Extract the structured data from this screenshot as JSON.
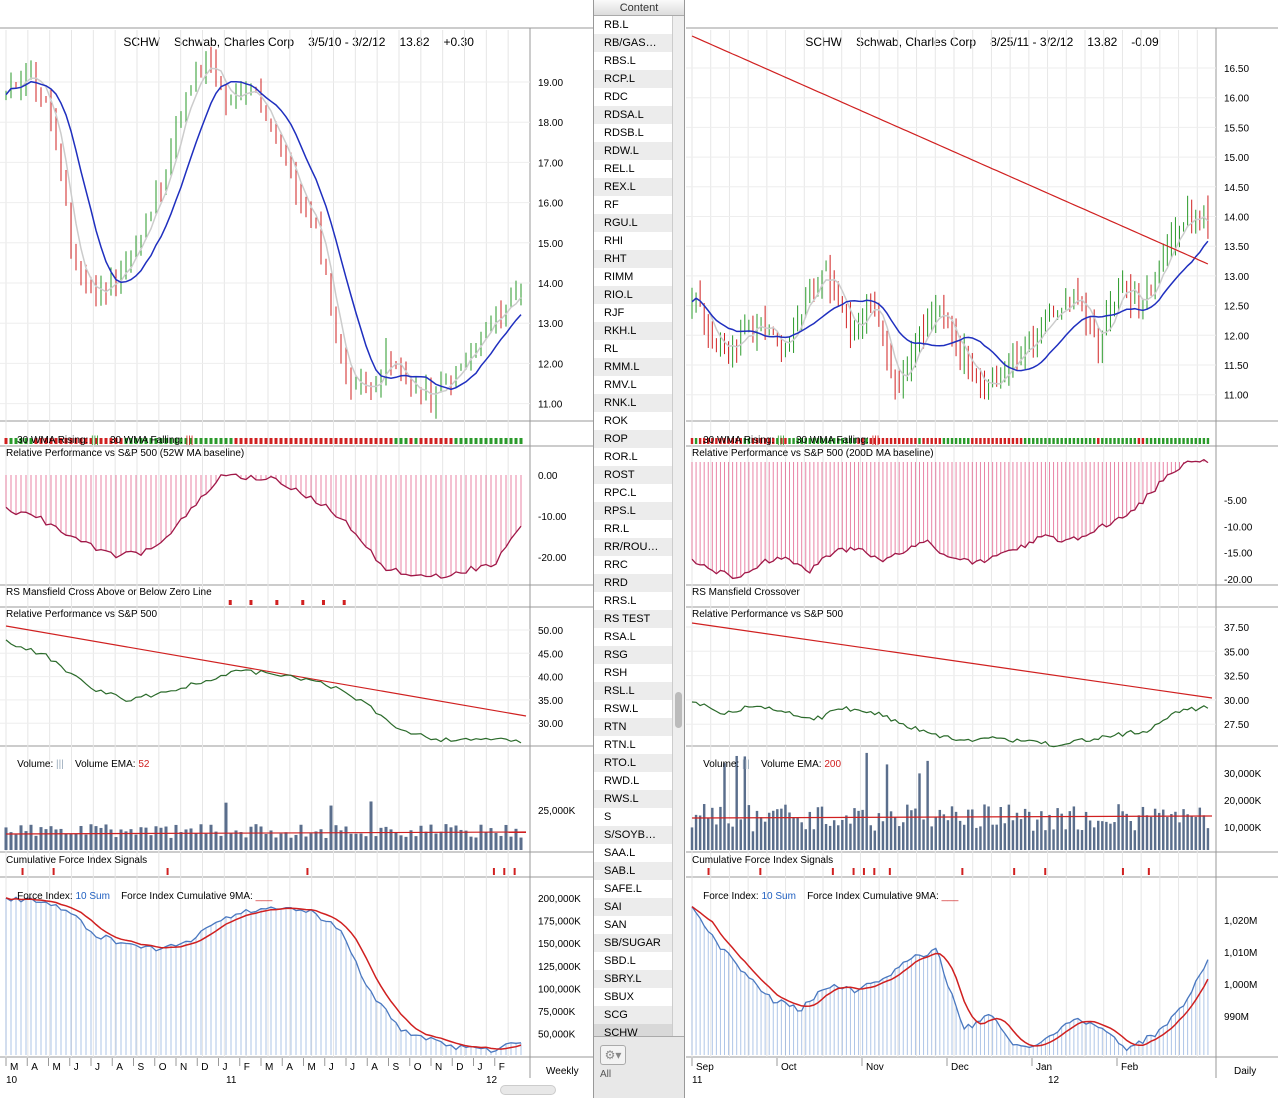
{
  "colors": {
    "up": "#2a9a2a",
    "down": "#d02020",
    "ma_blue": "#1f2fbf",
    "ma_gray": "#cccccc",
    "rs_line": "#2a6a2a",
    "force_bars": "#4a78c0"
  },
  "left_chart": {
    "header": {
      "symbol": "SCHW",
      "company": "Schwab, Charles Corp",
      "range": "3/5/10 - 3/2/12",
      "price": "13.82",
      "change": "+0.30"
    },
    "price_ticks": [
      "19.00",
      "18.00",
      "17.00",
      "16.00",
      "15.00",
      "14.00",
      "13.00",
      "12.00",
      "11.00"
    ],
    "wma_label": {
      "rising": "30 WMA Rising: ",
      "rising_marks": "|||",
      "falling": "30 WMA Falling: ",
      "falling_marks": "|||"
    },
    "rel_perf_baseline_label": "Relative Performance vs S&P 500 (52W MA baseline)",
    "rel_perf_baseline_ticks": [
      "0.00",
      "-10.00",
      "-20.00"
    ],
    "mansfield_label": "RS Mansfield Cross Above or Below Zero Line",
    "rel_perf_label": "Relative Performance vs S&P 500",
    "rel_perf_ticks": [
      "50.00",
      "45.00",
      "40.00",
      "35.00",
      "30.00"
    ],
    "volume_label": {
      "text": "Volume: ",
      "marks": "|||",
      "ema": "Volume EMA: ",
      "ema_value": "52"
    },
    "volume_ticks": [
      "25,000K"
    ],
    "cfi_label": "Cumulative Force Index Signals",
    "force_label": {
      "text": "Force Index: ",
      "sum": "10 Sum",
      "cum": "Force Index Cumulative 9MA: ",
      "cum_marks": "___"
    },
    "force_ticks": [
      "200,000K",
      "175,000K",
      "150,000K",
      "125,000K",
      "100,000K",
      "75,000K",
      "50,000K"
    ],
    "month_labels": [
      "M",
      "A",
      "M",
      "J",
      "J",
      "A",
      "S",
      "O",
      "N",
      "D",
      "J",
      "F",
      "M",
      "A",
      "M",
      "J",
      "J",
      "A",
      "S",
      "O",
      "N",
      "D",
      "J",
      "F"
    ],
    "year_labels": [
      "10",
      "11",
      "12"
    ],
    "timeframe": "Weekly"
  },
  "right_chart": {
    "header": {
      "symbol": "SCHW",
      "company": "Schwab, Charles Corp",
      "range": "8/25/11 - 3/2/12",
      "price": "13.82",
      "change": "-0.09"
    },
    "price_ticks": [
      "16.50",
      "16.00",
      "15.50",
      "15.00",
      "14.50",
      "14.00",
      "13.50",
      "13.00",
      "12.50",
      "12.00",
      "11.50",
      "11.00"
    ],
    "wma_label": {
      "rising": "30 WMA Rising: ",
      "rising_marks": "|||",
      "falling": "30 WMA Falling: ",
      "falling_marks": "|||"
    },
    "rel_perf_baseline_label": "Relative Performance vs S&P 500 (200D MA baseline)",
    "rel_perf_baseline_ticks": [
      "-5.00",
      "-10.00",
      "-15.00",
      "-20.00"
    ],
    "mansfield_label": "RS Mansfield Crossover",
    "rel_perf_label": "Relative Performance vs S&P 500",
    "rel_perf_ticks": [
      "37.50",
      "35.00",
      "32.50",
      "30.00",
      "27.50"
    ],
    "volume_label": {
      "text": "Volume: ",
      "marks": "|||",
      "ema": "Volume EMA: ",
      "ema_value": "200"
    },
    "volume_ticks": [
      "30,000K",
      "20,000K",
      "10,000K"
    ],
    "cfi_label": "Cumulative Force Index Signals",
    "force_label": {
      "text": "Force Index: ",
      "sum": "10 Sum",
      "cum": "Force Index Cumulative 9MA: ",
      "cum_marks": "___"
    },
    "force_ticks": [
      "1,020M",
      "1,010M",
      "1,000M",
      "990M"
    ],
    "month_labels": [
      "Sep",
      "Oct",
      "Nov",
      "Dec",
      "Jan",
      "Feb"
    ],
    "year_labels": [
      "11",
      "12"
    ],
    "timeframe": "Daily"
  },
  "sidebar": {
    "header": "Content",
    "symbols": [
      "RB.L",
      "RB/GAS…",
      "RBS.L",
      "RCP.L",
      "RDC",
      "RDSA.L",
      "RDSB.L",
      "RDW.L",
      "REL.L",
      "REX.L",
      "RF",
      "RGU.L",
      "RHI",
      "RHT",
      "RIMM",
      "RIO.L",
      "RJF",
      "RKH.L",
      "RL",
      "RMM.L",
      "RMV.L",
      "RNK.L",
      "ROK",
      "ROP",
      "ROR.L",
      "ROST",
      "RPC.L",
      "RPS.L",
      "RR.L",
      "RR/ROU…",
      "RRC",
      "RRD",
      "RRS.L",
      "RS TEST",
      "RSA.L",
      "RSG",
      "RSH",
      "RSL.L",
      "RSW.L",
      "RTN",
      "RTN.L",
      "RTO.L",
      "RWD.L",
      "RWS.L",
      "S",
      "S/SOYB…",
      "SAA.L",
      "SAB.L",
      "SAFE.L",
      "SAI",
      "SAN",
      "SB/SUGAR",
      "SBD.L",
      "SBRY.L",
      "SBUX",
      "SCG",
      "SCHW"
    ],
    "selected": "SCHW",
    "footer_label": "All",
    "gear_icon": "⚙▾"
  }
}
